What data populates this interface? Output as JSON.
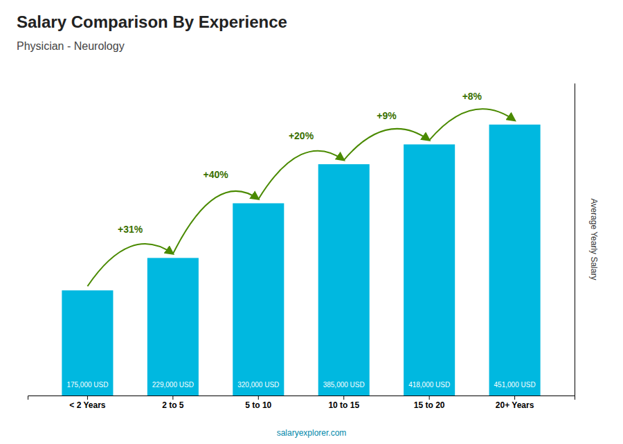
{
  "chart_data": {
    "type": "bar",
    "title": "Salary Comparison By Experience",
    "subtitle": "Physician - Neurology",
    "ylabel": "Average Yearly Salary",
    "footer": "salaryexplorer.com",
    "categories": [
      "< 2 Years",
      "2 to 5",
      "5 to 10",
      "10 to 15",
      "15 to 20",
      "20+ Years"
    ],
    "values": [
      175000,
      229000,
      320000,
      385000,
      418000,
      451000
    ],
    "value_labels": [
      "175,000 USD",
      "229,000 USD",
      "320,000 USD",
      "385,000 USD",
      "418,000 USD",
      "451,000 USD"
    ],
    "data_labels": true,
    "annotations": [
      null,
      "+31%",
      "+40%",
      "+20%",
      "+9%",
      "+8%"
    ],
    "color": "#00b8e0",
    "ylim": [
      0,
      520000
    ],
    "tick_labels": "x",
    "grid": false
  }
}
